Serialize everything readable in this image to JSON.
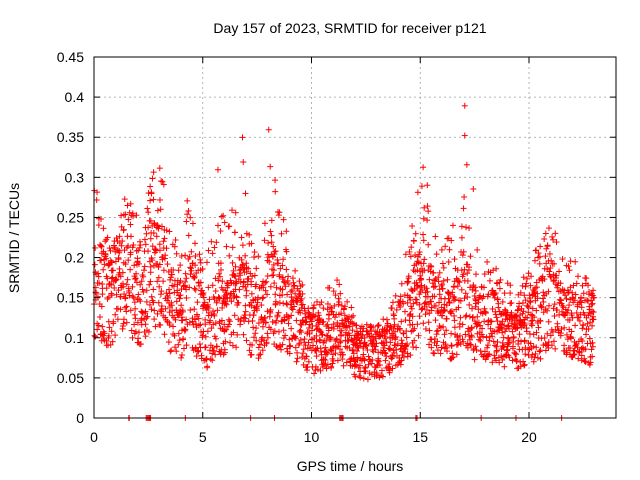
{
  "chart_data": {
    "type": "scatter",
    "title": "Day 157 of 2023, SRMTID for receiver p121",
    "xlabel": "GPS time / hours",
    "ylabel": "SRMTID / TECUs",
    "xlim": [
      0,
      24
    ],
    "ylim": [
      0,
      0.45
    ],
    "x_ticks": [
      0,
      5,
      10,
      15,
      20
    ],
    "x_tick_labels": [
      "0",
      "5",
      "10",
      "15",
      "20"
    ],
    "y_ticks": [
      0,
      0.05,
      0.1,
      0.15,
      0.2,
      0.25,
      0.3,
      0.35,
      0.4,
      0.45
    ],
    "y_tick_labels": [
      "0",
      "0.05",
      "0.1",
      "0.15",
      "0.2",
      "0.25",
      "0.3",
      "0.35",
      "0.4",
      "0.45"
    ],
    "grid": true,
    "marker": "+",
    "color": "#ff0000",
    "seed": 157,
    "envelope": [
      [
        0.0,
        0.18,
        0.32
      ],
      [
        0.5,
        0.16,
        0.24
      ],
      [
        1.0,
        0.17,
        0.22
      ],
      [
        1.3,
        0.18,
        0.27
      ],
      [
        1.5,
        0.2,
        0.33
      ],
      [
        1.9,
        0.17,
        0.26
      ],
      [
        2.2,
        0.16,
        0.22
      ],
      [
        2.5,
        0.19,
        0.28
      ],
      [
        3.0,
        0.2,
        0.34
      ],
      [
        3.5,
        0.15,
        0.25
      ],
      [
        4.0,
        0.13,
        0.2
      ],
      [
        4.3,
        0.16,
        0.28
      ],
      [
        4.7,
        0.14,
        0.22
      ],
      [
        5.2,
        0.11,
        0.2
      ],
      [
        5.7,
        0.15,
        0.33
      ],
      [
        6.1,
        0.13,
        0.24
      ],
      [
        6.5,
        0.15,
        0.28
      ],
      [
        6.8,
        0.17,
        0.4
      ],
      [
        7.2,
        0.14,
        0.22
      ],
      [
        7.7,
        0.13,
        0.2
      ],
      [
        8.1,
        0.18,
        0.4
      ],
      [
        8.5,
        0.15,
        0.27
      ],
      [
        9.0,
        0.14,
        0.22
      ],
      [
        9.5,
        0.12,
        0.17
      ],
      [
        10.0,
        0.1,
        0.14
      ],
      [
        10.5,
        0.1,
        0.15
      ],
      [
        11.0,
        0.11,
        0.19
      ],
      [
        11.5,
        0.11,
        0.16
      ],
      [
        12.0,
        0.09,
        0.13
      ],
      [
        12.5,
        0.085,
        0.12
      ],
      [
        13.0,
        0.09,
        0.12
      ],
      [
        13.5,
        0.09,
        0.13
      ],
      [
        14.0,
        0.11,
        0.17
      ],
      [
        14.5,
        0.14,
        0.22
      ],
      [
        15.0,
        0.16,
        0.3
      ],
      [
        15.5,
        0.15,
        0.35
      ],
      [
        16.0,
        0.13,
        0.21
      ],
      [
        16.5,
        0.13,
        0.24
      ],
      [
        17.0,
        0.16,
        0.41
      ],
      [
        17.5,
        0.13,
        0.28
      ],
      [
        18.0,
        0.13,
        0.2
      ],
      [
        18.5,
        0.12,
        0.19
      ],
      [
        19.0,
        0.11,
        0.17
      ],
      [
        19.5,
        0.11,
        0.16
      ],
      [
        20.0,
        0.12,
        0.2
      ],
      [
        20.5,
        0.13,
        0.22
      ],
      [
        21.0,
        0.16,
        0.28
      ],
      [
        21.5,
        0.13,
        0.2
      ],
      [
        22.0,
        0.12,
        0.2
      ],
      [
        22.5,
        0.12,
        0.19
      ],
      [
        23.0,
        0.12,
        0.16
      ]
    ],
    "zero_points": [
      1.6,
      1.62,
      2.4,
      2.45,
      2.5,
      2.55,
      2.6,
      4.2,
      7.2,
      8.3,
      11.3,
      11.35,
      11.4,
      11.45,
      14.8,
      14.85,
      17.8,
      19.4,
      21.5
    ]
  }
}
